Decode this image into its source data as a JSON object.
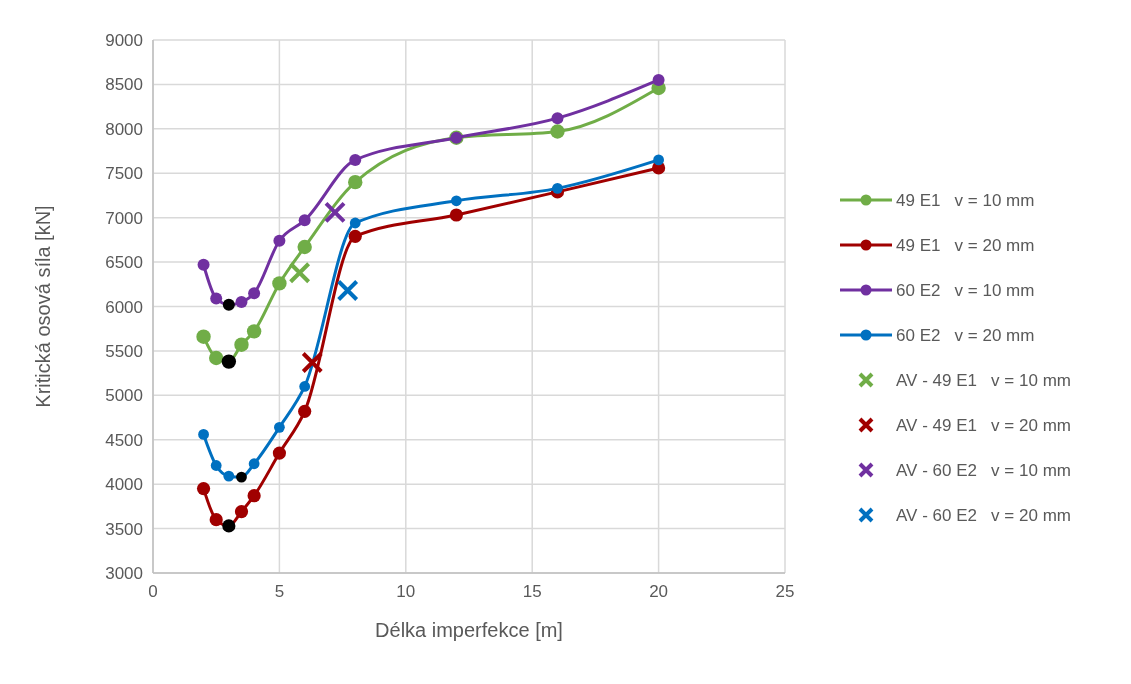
{
  "chart_data": {
    "type": "line",
    "xlabel": "Délka imperfekce [m]",
    "ylabel": "Kritická osová síla [kN]",
    "xlim": [
      0,
      25
    ],
    "xticks": [
      0,
      5,
      10,
      15,
      20,
      25
    ],
    "ylim": [
      3000,
      9000
    ],
    "yticks": [
      3000,
      3500,
      4000,
      4500,
      5000,
      5500,
      6000,
      6500,
      7000,
      7500,
      8000,
      8500,
      9000
    ],
    "grid": true,
    "legend": "right",
    "marker": "circle",
    "x": [
      2,
      2.5,
      3,
      3.5,
      4,
      5,
      6,
      8,
      12,
      16,
      20
    ],
    "series": [
      {
        "name": "49 E1   v = 10 mm",
        "color": "#70ad47",
        "values": [
          5660,
          5420,
          5380,
          5570,
          5720,
          6260,
          6670,
          7400,
          7900,
          7970,
          8460
        ],
        "colors": [
          "#70ad47",
          "#70ad47",
          "#000000",
          "#70ad47",
          "#70ad47",
          "#70ad47",
          "#70ad47",
          "#70ad47",
          "#70ad47",
          "#70ad47",
          "#70ad47"
        ]
      },
      {
        "name": "49 E1   v = 20 mm",
        "color": "#a00000",
        "values": [
          3950,
          3600,
          3530,
          3690,
          3870,
          4350,
          4820,
          6790,
          7030,
          7290,
          7560
        ],
        "colors": [
          "#a00000",
          "#a00000",
          "#000000",
          "#a00000",
          "#a00000",
          "#a00000",
          "#a00000",
          "#a00000",
          "#a00000",
          "#a00000",
          "#a00000"
        ]
      },
      {
        "name": "60 E2   v = 10 mm",
        "color": "#7030a0",
        "values": [
          6470,
          6090,
          6020,
          6050,
          6150,
          6740,
          6970,
          7650,
          7900,
          8120,
          8550
        ],
        "colors": [
          "#7030a0",
          "#7030a0",
          "#000000",
          "#7030a0",
          "#7030a0",
          "#7030a0",
          "#7030a0",
          "#7030a0",
          "#7030a0",
          "#7030a0",
          "#7030a0"
        ]
      },
      {
        "name": "60 E2   v = 20 mm",
        "color": "#0070c0",
        "values": [
          4560,
          4210,
          4090,
          4080,
          4230,
          4640,
          5100,
          6940,
          7190,
          7330,
          7650
        ],
        "colors": [
          "#0070c0",
          "#0070c0",
          "#0070c0",
          "#000000",
          "#0070c0",
          "#0070c0",
          "#0070c0",
          "#0070c0",
          "#0070c0",
          "#0070c0",
          "#0070c0"
        ]
      },
      {
        "name": "AV - 49 E1   v = 10 mm",
        "type": "scatter",
        "marker": "cross",
        "color": "#70ad47",
        "x": [
          5.8
        ],
        "values": [
          6380
        ]
      },
      {
        "name": "AV - 49 E1   v = 20 mm",
        "type": "scatter",
        "marker": "cross",
        "color": "#a00000",
        "x": [
          6.3
        ],
        "values": [
          5370
        ]
      },
      {
        "name": "AV - 60 E2   v = 10 mm",
        "type": "scatter",
        "marker": "cross",
        "color": "#7030a0",
        "x": [
          7.2
        ],
        "values": [
          7060
        ]
      },
      {
        "name": "AV - 60 E2   v = 20 mm",
        "type": "scatter",
        "marker": "cross",
        "color": "#0070c0",
        "x": [
          7.7
        ],
        "values": [
          6180
        ]
      }
    ]
  }
}
